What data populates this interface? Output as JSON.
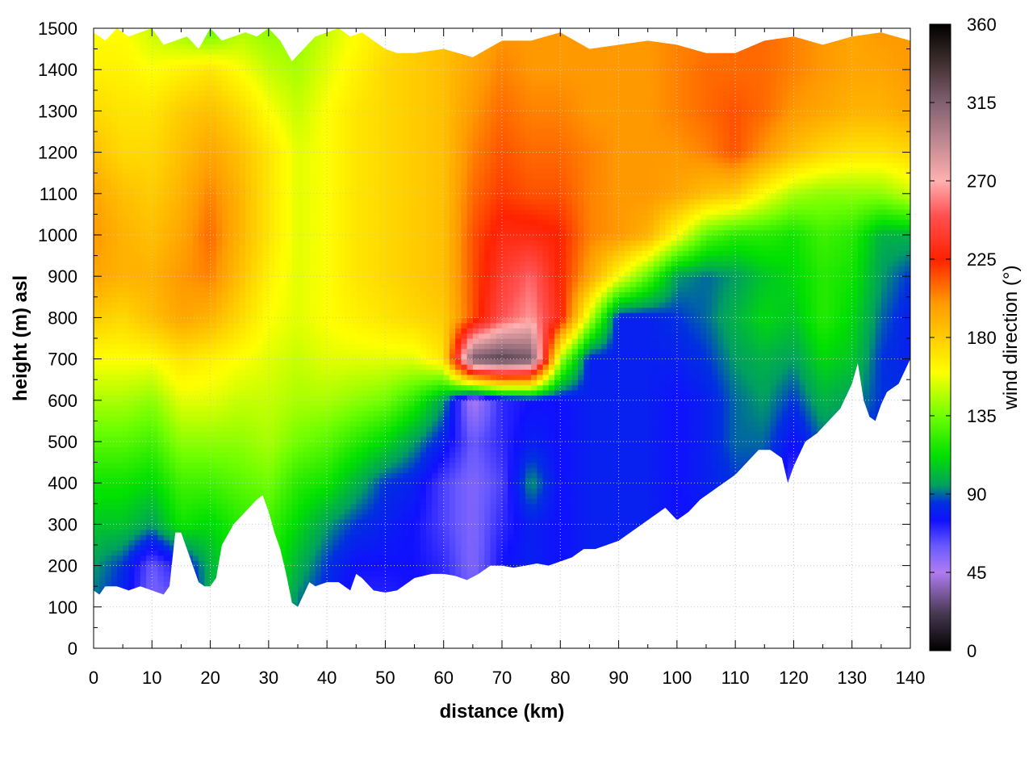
{
  "chart_data": {
    "type": "heatmap",
    "title": "",
    "xlabel": "distance (km)",
    "ylabel": "height (m) asl",
    "colorbar_label": "wind direction (°)",
    "xlim": [
      0,
      140
    ],
    "ylim": [
      0,
      1500
    ],
    "clim": [
      0,
      360
    ],
    "x_ticks": [
      0,
      10,
      20,
      30,
      40,
      50,
      60,
      70,
      80,
      90,
      100,
      110,
      120,
      130,
      140
    ],
    "y_ticks": [
      0,
      100,
      200,
      300,
      400,
      500,
      600,
      700,
      800,
      900,
      1000,
      1100,
      1200,
      1300,
      1400,
      1500
    ],
    "c_ticks": [
      0,
      45,
      90,
      135,
      180,
      225,
      270,
      315,
      360
    ],
    "grid": true,
    "colormap": [
      [
        0,
        "#000000"
      ],
      [
        22,
        "#4a3a55"
      ],
      [
        45,
        "#b07cf0"
      ],
      [
        60,
        "#6a5aff"
      ],
      [
        75,
        "#1010ff"
      ],
      [
        85,
        "#0030e0"
      ],
      [
        95,
        "#00a060"
      ],
      [
        112,
        "#00e000"
      ],
      [
        135,
        "#70ff00"
      ],
      [
        160,
        "#ffff00"
      ],
      [
        180,
        "#ffcc00"
      ],
      [
        200,
        "#ff9900"
      ],
      [
        225,
        "#ff2200"
      ],
      [
        250,
        "#ff5050"
      ],
      [
        270,
        "#ffb0b0"
      ],
      [
        315,
        "#806070"
      ],
      [
        340,
        "#3a2a2a"
      ],
      [
        360,
        "#000000"
      ]
    ],
    "terrain": {
      "distance_km": [
        0,
        1,
        2,
        4,
        6,
        8,
        10,
        12,
        13,
        14,
        15,
        17,
        18,
        19,
        20,
        21,
        22,
        24,
        26,
        28,
        29,
        30,
        31,
        32,
        33,
        34,
        35,
        36,
        37,
        38,
        40,
        42,
        44,
        45,
        46,
        48,
        50,
        52,
        55,
        58,
        60,
        62,
        64,
        66,
        68,
        70,
        72,
        74,
        76,
        78,
        80,
        82,
        84,
        86,
        88,
        90,
        92,
        94,
        96,
        98,
        100,
        102,
        104,
        106,
        108,
        110,
        112,
        114,
        116,
        118,
        119,
        120,
        122,
        124,
        126,
        128,
        130,
        131,
        132,
        133,
        134,
        135,
        136,
        138,
        140
      ],
      "height_m": [
        140,
        130,
        150,
        150,
        140,
        150,
        140,
        130,
        150,
        280,
        280,
        200,
        160,
        150,
        150,
        170,
        250,
        300,
        330,
        360,
        370,
        330,
        280,
        240,
        180,
        110,
        100,
        130,
        160,
        150,
        160,
        160,
        140,
        180,
        170,
        140,
        135,
        140,
        170,
        180,
        180,
        175,
        165,
        180,
        200,
        200,
        195,
        200,
        205,
        200,
        210,
        220,
        240,
        240,
        250,
        260,
        280,
        300,
        320,
        340,
        310,
        330,
        360,
        380,
        400,
        420,
        450,
        480,
        480,
        460,
        400,
        440,
        500,
        520,
        550,
        580,
        640,
        690,
        600,
        560,
        550,
        590,
        620,
        640,
        700
      ]
    },
    "top": {
      "distance_km": [
        0,
        2,
        4,
        6,
        8,
        10,
        12,
        14,
        16,
        18,
        20,
        22,
        24,
        26,
        28,
        30,
        32,
        34,
        36,
        38,
        40,
        42,
        44,
        46,
        48,
        50,
        52,
        55,
        60,
        65,
        70,
        75,
        80,
        85,
        90,
        95,
        100,
        105,
        110,
        115,
        120,
        125,
        130,
        135,
        140
      ],
      "height_m": [
        1490,
        1470,
        1500,
        1480,
        1490,
        1500,
        1460,
        1470,
        1480,
        1450,
        1500,
        1470,
        1480,
        1490,
        1480,
        1500,
        1470,
        1420,
        1450,
        1480,
        1490,
        1500,
        1480,
        1490,
        1470,
        1450,
        1440,
        1440,
        1450,
        1430,
        1470,
        1470,
        1490,
        1450,
        1460,
        1470,
        1460,
        1440,
        1440,
        1470,
        1480,
        1460,
        1480,
        1490,
        1470
      ]
    },
    "direction_field": {
      "distance_km": [
        0,
        5,
        10,
        15,
        20,
        25,
        30,
        35,
        40,
        45,
        50,
        55,
        60,
        65,
        70,
        75,
        80,
        85,
        90,
        95,
        100,
        105,
        110,
        115,
        120,
        125,
        130,
        135,
        140
      ],
      "height_m": [
        0,
        100,
        200,
        300,
        400,
        500,
        600,
        700,
        800,
        900,
        1000,
        1100,
        1200,
        1300,
        1400,
        1500
      ],
      "wind_direction_deg": [
        [
          90,
          80,
          60,
          70,
          100,
          110,
          120,
          90,
          80,
          70,
          70,
          75,
          70,
          60,
          75,
          80,
          75,
          80,
          80,
          80,
          75,
          75,
          80,
          80,
          60,
          80,
          75,
          60,
          85
        ],
        [
          90,
          80,
          55,
          60,
          100,
          110,
          120,
          90,
          80,
          70,
          70,
          75,
          70,
          60,
          75,
          80,
          75,
          80,
          80,
          80,
          75,
          75,
          80,
          80,
          60,
          80,
          75,
          60,
          85
        ],
        [
          95,
          85,
          60,
          75,
          100,
          115,
          120,
          100,
          85,
          75,
          75,
          75,
          70,
          55,
          75,
          80,
          75,
          80,
          80,
          80,
          75,
          75,
          80,
          80,
          55,
          80,
          75,
          60,
          85
        ],
        [
          105,
          105,
          95,
          115,
          110,
          120,
          125,
          110,
          95,
          85,
          80,
          75,
          65,
          55,
          70,
          80,
          75,
          80,
          80,
          80,
          75,
          75,
          80,
          80,
          50,
          80,
          75,
          55,
          85
        ],
        [
          115,
          115,
          110,
          125,
          125,
          130,
          135,
          120,
          115,
          100,
          85,
          80,
          65,
          55,
          65,
          95,
          75,
          80,
          80,
          80,
          75,
          80,
          85,
          85,
          65,
          85,
          80,
          75,
          85
        ],
        [
          130,
          130,
          125,
          140,
          140,
          140,
          145,
          135,
          130,
          120,
          110,
          95,
          80,
          60,
          70,
          80,
          75,
          80,
          80,
          80,
          75,
          80,
          90,
          90,
          75,
          90,
          85,
          80,
          85
        ],
        [
          145,
          145,
          140,
          155,
          155,
          150,
          150,
          145,
          145,
          140,
          135,
          120,
          95,
          45,
          70,
          75,
          75,
          80,
          80,
          80,
          75,
          80,
          90,
          95,
          85,
          100,
          95,
          85,
          85
        ],
        [
          160,
          160,
          160,
          170,
          165,
          160,
          155,
          150,
          155,
          155,
          155,
          155,
          170,
          320,
          330,
          320,
          145,
          80,
          80,
          80,
          80,
          85,
          95,
          100,
          95,
          110,
          105,
          85,
          80
        ],
        [
          180,
          175,
          185,
          195,
          190,
          175,
          160,
          155,
          160,
          165,
          170,
          175,
          180,
          215,
          250,
          265,
          230,
          150,
          80,
          80,
          85,
          90,
          100,
          110,
          105,
          120,
          110,
          90,
          80
        ],
        [
          195,
          190,
          190,
          200,
          205,
          185,
          165,
          155,
          160,
          170,
          175,
          180,
          185,
          215,
          240,
          255,
          225,
          195,
          160,
          130,
          95,
          90,
          95,
          105,
          110,
          120,
          115,
          95,
          85
        ],
        [
          200,
          190,
          185,
          195,
          210,
          190,
          170,
          155,
          160,
          170,
          175,
          180,
          185,
          215,
          230,
          230,
          225,
          205,
          200,
          190,
          160,
          130,
          120,
          120,
          115,
          125,
          120,
          100,
          100
        ],
        [
          195,
          185,
          180,
          190,
          205,
          190,
          170,
          155,
          160,
          170,
          175,
          180,
          185,
          210,
          220,
          215,
          215,
          205,
          200,
          200,
          195,
          185,
          180,
          160,
          145,
          140,
          140,
          140,
          150
        ],
        [
          185,
          175,
          175,
          185,
          195,
          185,
          170,
          155,
          160,
          170,
          175,
          180,
          185,
          205,
          215,
          210,
          210,
          205,
          200,
          200,
          200,
          205,
          215,
          200,
          185,
          175,
          170,
          170,
          175
        ],
        [
          175,
          170,
          170,
          180,
          185,
          175,
          160,
          150,
          160,
          170,
          175,
          180,
          185,
          200,
          210,
          205,
          205,
          200,
          200,
          200,
          205,
          210,
          215,
          210,
          200,
          195,
          190,
          190,
          195
        ],
        [
          165,
          165,
          160,
          165,
          170,
          160,
          150,
          145,
          155,
          165,
          175,
          180,
          185,
          195,
          205,
          200,
          200,
          200,
          200,
          200,
          205,
          210,
          210,
          210,
          205,
          200,
          195,
          195,
          200
        ],
        [
          160,
          160,
          150,
          140,
          130,
          145,
          140,
          140,
          150,
          160,
          170,
          180,
          185,
          190,
          200,
          200,
          200,
          200,
          200,
          200,
          205,
          205,
          210,
          210,
          205,
          200,
          195,
          200,
          200
        ]
      ]
    }
  }
}
